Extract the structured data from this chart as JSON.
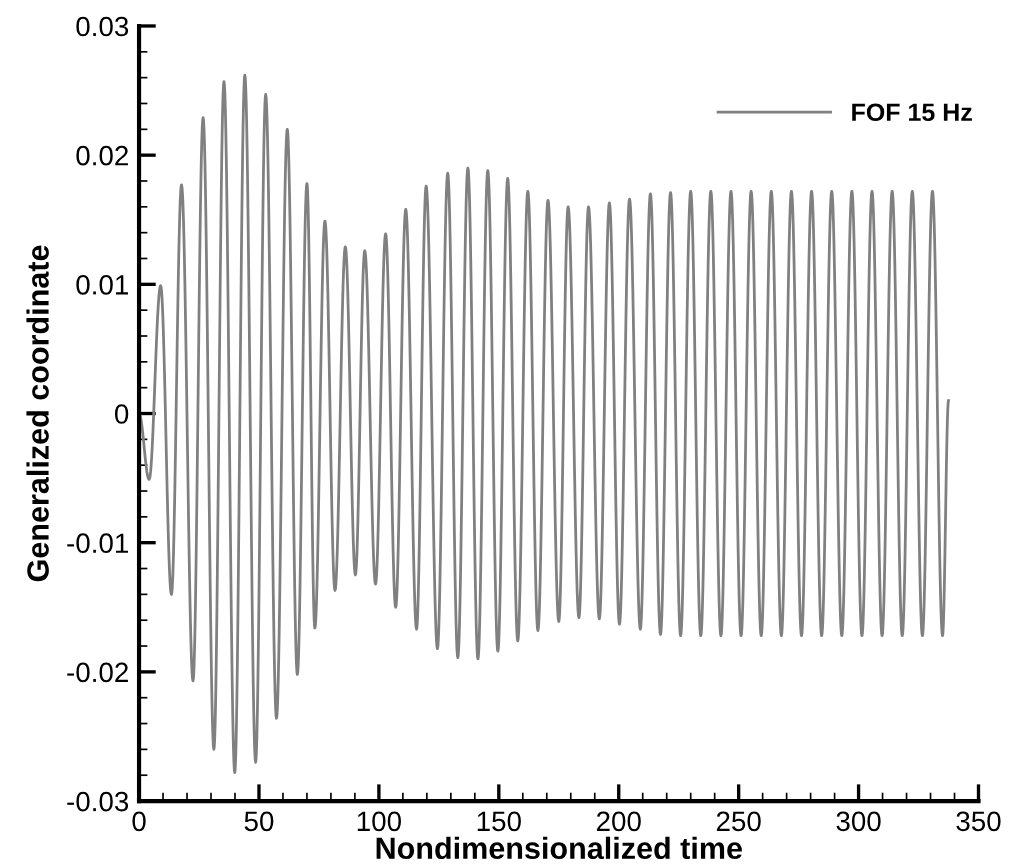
{
  "chart_data": {
    "type": "line",
    "xlabel": "Nondimensionalized time",
    "ylabel": "Generalized coordinate",
    "xlim": [
      0,
      350
    ],
    "xticks": [
      0,
      50,
      100,
      150,
      200,
      250,
      300,
      350
    ],
    "ylim": [
      -0.03,
      0.03
    ],
    "yticks": [
      -0.03,
      -0.02,
      -0.01,
      0,
      0.01,
      0.02,
      0.03
    ],
    "grid": false,
    "legend": "top right",
    "marker": "none",
    "line_style": "solid",
    "series": [
      {
        "name": "FOF 15 Hz",
        "color": "#808080",
        "x": [
          0,
          4.2,
          9.0,
          13.5,
          17.7,
          22.5,
          26.7,
          31.2,
          35.4,
          39.9,
          44.1,
          48.6,
          52.8,
          57.3,
          61.8,
          66.0,
          70.0,
          73.3,
          77.5,
          81.7,
          86.0,
          90.2,
          94.1,
          98.6,
          102.8,
          107.0,
          111.2,
          115.7,
          119.7,
          124.4,
          128.7,
          132.9,
          137.1,
          141.3,
          145.4,
          149.6,
          153.7,
          157.9,
          162.1,
          166.3,
          170.5,
          175.0,
          178.9,
          183.4,
          187.4,
          191.9,
          196.1,
          200.3,
          204.5,
          209.0,
          213.2,
          217.4,
          221.6,
          225.8,
          230.0,
          234.2,
          238.4,
          242.6,
          246.8,
          251.0,
          255.2,
          259.4,
          263.6,
          267.8,
          272.0,
          276.2,
          280.4,
          284.6,
          288.8,
          293.0,
          297.2,
          301.4,
          305.6,
          309.8,
          314.0,
          318.2,
          322.4,
          326.6,
          330.8,
          335.0,
          337.5
        ],
        "values": [
          0,
          -0.0051,
          0.0099,
          -0.014,
          0.0177,
          -0.0207,
          0.0229,
          -0.026,
          0.0257,
          -0.0278,
          0.0262,
          -0.027,
          0.0247,
          -0.0236,
          0.022,
          -0.0202,
          0.0178,
          -0.0166,
          0.0149,
          -0.0137,
          0.0129,
          -0.0125,
          0.0126,
          -0.0132,
          0.0139,
          -0.015,
          0.0158,
          -0.0167,
          0.0176,
          -0.0182,
          0.0186,
          -0.0189,
          0.019,
          -0.019,
          0.0188,
          -0.0184,
          0.0182,
          -0.0176,
          0.0172,
          -0.0168,
          0.0165,
          -0.0161,
          0.016,
          -0.0158,
          0.016,
          -0.0159,
          0.0163,
          -0.0163,
          0.0166,
          -0.0167,
          0.017,
          -0.0171,
          0.0171,
          -0.0172,
          0.0172,
          -0.0172,
          0.0172,
          -0.0172,
          0.0172,
          -0.0172,
          0.0172,
          -0.0172,
          0.0172,
          -0.0172,
          0.0172,
          -0.0172,
          0.0172,
          -0.0172,
          0.0172,
          -0.0172,
          0.0172,
          -0.0172,
          0.0172,
          -0.0172,
          0.0172,
          -0.0172,
          0.0172,
          -0.0172,
          0.0172,
          -0.0172,
          0.001
        ]
      }
    ]
  }
}
